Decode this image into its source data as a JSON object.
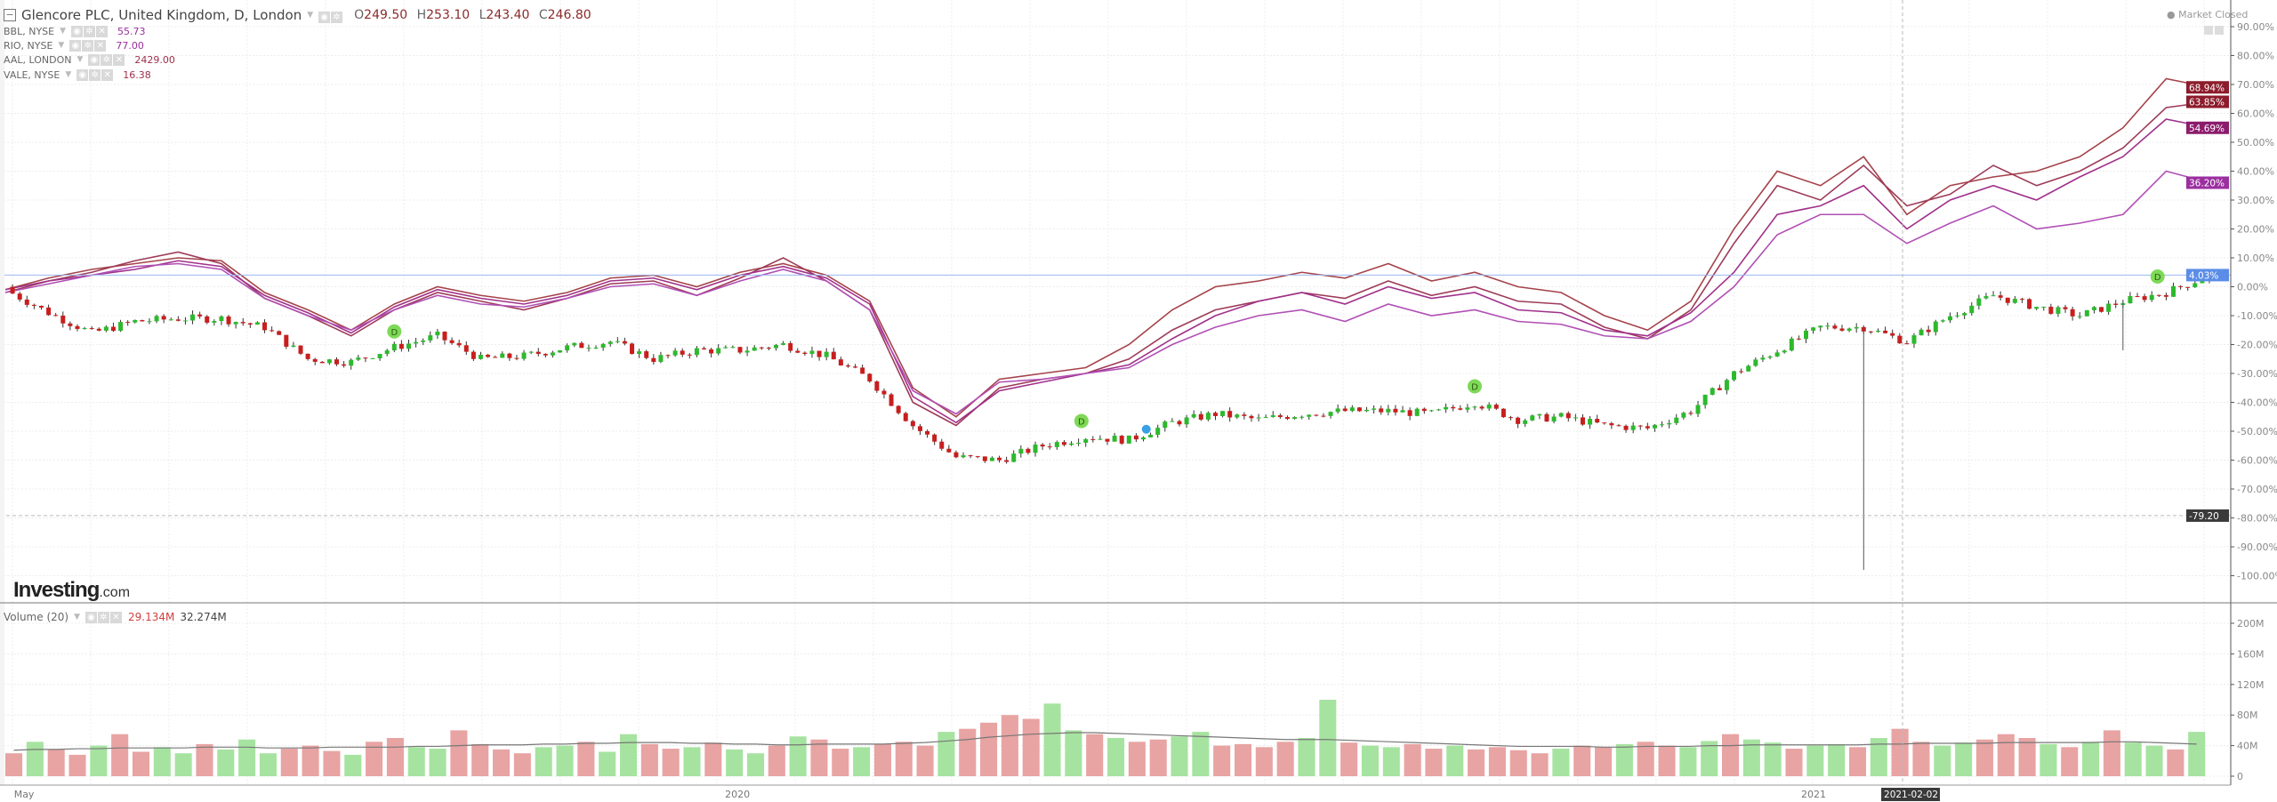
{
  "header": {
    "collapse_icon": "minus-box-icon",
    "title": "Glencore PLC, United Kingdom, D, London",
    "o_label": "O",
    "o": "249.50",
    "h_label": "H",
    "h": "253.10",
    "l_label": "L",
    "l": "243.40",
    "c_label": "C",
    "c": "246.80"
  },
  "comparisons": [
    {
      "name": "BBL, NYSE",
      "value": "55.73",
      "color": "#9b2f9b"
    },
    {
      "name": "RIO, NYSE",
      "value": "77.00",
      "color": "#9b2f9b"
    },
    {
      "name": "AAL, LONDON",
      "value": "2429.00",
      "color": "#a0304a"
    },
    {
      "name": "VALE, NYSE",
      "value": "16.38",
      "color": "#a0304a"
    }
  ],
  "status": {
    "market": "Market Closed"
  },
  "logo": {
    "main": "Investing",
    "suffix": ".com"
  },
  "volume_legend": {
    "name": "Volume (20)",
    "value": "29.134M",
    "ma": "32.274M"
  },
  "chart_data": {
    "type": "line",
    "title": "Glencore PLC, United Kingdom, D, London",
    "ylabel": "% change",
    "ylim": [
      -100,
      90
    ],
    "yticks": [
      "90.00%",
      "80.00%",
      "70.00%",
      "60.00%",
      "50.00%",
      "40.00%",
      "30.00%",
      "20.00%",
      "10.00%",
      "0.00%",
      "-10.00%",
      "-20.00%",
      "-30.00%",
      "-40.00%",
      "-50.00%",
      "-60.00%",
      "-70.00%",
      "-80.00%",
      "-90.00%",
      "-100.00%"
    ],
    "ytick_values": [
      90,
      80,
      70,
      60,
      50,
      40,
      30,
      20,
      10,
      0,
      -10,
      -20,
      -30,
      -40,
      -50,
      -60,
      -70,
      -80,
      -90,
      -100
    ],
    "xticks": [
      {
        "i": 0.2,
        "label": "May"
      },
      {
        "i": 16.9,
        "label": "2020"
      },
      {
        "i": 41.8,
        "label": "2021"
      }
    ],
    "crosshair": {
      "i": 43.9,
      "date_label": "2021-02-02",
      "value": -79.2,
      "value_label": "-79.20"
    },
    "grid": true,
    "main_series": {
      "name": "Glencore PLC",
      "style": "candles",
      "last_label": "4.03%",
      "last_value": 4.03,
      "color": "#5b8de8",
      "closes": [
        -1,
        -9,
        -16,
        -12,
        -11,
        -11,
        -14,
        -25,
        -26,
        -21,
        -17,
        -25,
        -24,
        -21,
        -19,
        -25,
        -22,
        -22,
        -20,
        -24,
        -32,
        -48,
        -59,
        -60,
        -55,
        -52,
        -53,
        -47,
        -44,
        -46,
        -44,
        -43,
        -43,
        -44,
        -40,
        -46,
        -45,
        -48,
        -49,
        -43,
        -30,
        -22,
        -14,
        -14,
        -19,
        -10,
        -3,
        -7,
        -10,
        -5,
        -2,
        4
      ],
      "low_spikes": [
        {
          "i": 43,
          "low": -98
        },
        {
          "i": 49,
          "low": -22
        }
      ],
      "up_color": "#2db92d",
      "down_color": "#c81e1e"
    },
    "series": [
      {
        "name": "AAL, LONDON",
        "last_label": "68.94%",
        "color": "#a5434a",
        "badge": "#8c1c2c",
        "values": [
          -1,
          3,
          6,
          8,
          10,
          9,
          -2,
          -8,
          -15,
          -6,
          0,
          -3,
          -5,
          -2,
          3,
          4,
          0,
          5,
          8,
          4,
          -5,
          -35,
          -45,
          -32,
          -30,
          -28,
          -20,
          -8,
          0,
          2,
          5,
          3,
          8,
          2,
          5,
          0,
          -2,
          -10,
          -15,
          -5,
          20,
          40,
          35,
          45,
          25,
          35,
          38,
          40,
          45,
          55,
          72,
          69
        ]
      },
      {
        "name": "VALE, NYSE",
        "last_label": "63.85%",
        "color": "#9e3b58",
        "badge": "#8c1c2c",
        "values": [
          -2,
          2,
          5,
          9,
          12,
          8,
          -4,
          -10,
          -17,
          -8,
          -2,
          -5,
          -8,
          -4,
          1,
          2,
          -3,
          3,
          10,
          2,
          -8,
          -40,
          -48,
          -35,
          -32,
          -30,
          -25,
          -15,
          -8,
          -5,
          -2,
          -4,
          2,
          -3,
          0,
          -5,
          -6,
          -14,
          -18,
          -8,
          15,
          35,
          30,
          42,
          28,
          32,
          42,
          35,
          40,
          48,
          62,
          64
        ]
      },
      {
        "name": "BBL, NYSE",
        "last_label": "54.69%",
        "color": "#a0308a",
        "badge": "#8c1c6c",
        "values": [
          -1,
          2,
          4,
          6,
          9,
          7,
          -3,
          -9,
          -16,
          -7,
          -1,
          -4,
          -6,
          -3,
          2,
          3,
          -1,
          4,
          7,
          3,
          -6,
          -38,
          -47,
          -36,
          -33,
          -30,
          -27,
          -18,
          -10,
          -5,
          -2,
          -6,
          0,
          -4,
          -2,
          -8,
          -9,
          -15,
          -17,
          -9,
          5,
          25,
          28,
          35,
          20,
          30,
          35,
          30,
          38,
          45,
          58,
          55
        ]
      },
      {
        "name": "RIO, NYSE",
        "last_label": "36.20%",
        "color": "#b04fb5",
        "badge": "#9b2fa0",
        "values": [
          -2,
          1,
          4,
          7,
          8,
          6,
          -4,
          -10,
          -15,
          -8,
          -3,
          -6,
          -7,
          -4,
          0,
          1,
          -3,
          2,
          6,
          2,
          -8,
          -36,
          -44,
          -33,
          -32,
          -30,
          -28,
          -20,
          -14,
          -10,
          -8,
          -12,
          -6,
          -10,
          -8,
          -12,
          -13,
          -17,
          -18,
          -12,
          0,
          18,
          25,
          25,
          15,
          22,
          28,
          20,
          22,
          25,
          40,
          36
        ]
      }
    ],
    "markers": [
      {
        "i": 9,
        "label": "D",
        "color": "#7ed957"
      },
      {
        "i": 24.9,
        "label": "D",
        "color": "#7ed957"
      },
      {
        "i": 26.4,
        "label": "",
        "color": "#3aa0e6"
      },
      {
        "i": 34,
        "label": "D",
        "color": "#7ed957"
      },
      {
        "i": 49.8,
        "label": "D",
        "color": "#7ed957"
      }
    ],
    "volume": {
      "unit": "M",
      "ylim": [
        0,
        215
      ],
      "yticks": [
        "200M",
        "160M",
        "120M",
        "80M",
        "40M",
        "0"
      ],
      "ytick_values": [
        200,
        160,
        120,
        80,
        40,
        0
      ],
      "up_color": "#a6e3a0",
      "down_color": "#e8a3a3",
      "ma_color": "#777777",
      "values": [
        30,
        45,
        35,
        28,
        40,
        55,
        32,
        38,
        30,
        42,
        35,
        48,
        30,
        36,
        40,
        33,
        28,
        45,
        50,
        38,
        36,
        60,
        42,
        35,
        30,
        38,
        40,
        45,
        32,
        55,
        42,
        36,
        38,
        44,
        35,
        30,
        40,
        52,
        48,
        36,
        38,
        42,
        45,
        40,
        58,
        62,
        70,
        80,
        75,
        95,
        60,
        55,
        50,
        45,
        48,
        52,
        58,
        40,
        42,
        38,
        45,
        50,
        100,
        44,
        40,
        38,
        42,
        36,
        40,
        35,
        38,
        34,
        30,
        36,
        40,
        38,
        42,
        45,
        40,
        38,
        46,
        55,
        48,
        44,
        36,
        40,
        42,
        38,
        50,
        62,
        45,
        40,
        44,
        48,
        55,
        50,
        42,
        38,
        45,
        60,
        44,
        40,
        35,
        58
      ],
      "ma": [
        34,
        35,
        35,
        36,
        36,
        37,
        37,
        37,
        37,
        38,
        38,
        38,
        37,
        37,
        37,
        38,
        38,
        38,
        38,
        39,
        39,
        40,
        41,
        41,
        41,
        42,
        42,
        43,
        43,
        44,
        44,
        44,
        43,
        43,
        42,
        42,
        41,
        41,
        42,
        42,
        42,
        42,
        43,
        44,
        46,
        48,
        51,
        53,
        55,
        56,
        57,
        57,
        56,
        55,
        54,
        53,
        52,
        51,
        50,
        49,
        48,
        48,
        48,
        47,
        46,
        45,
        44,
        43,
        42,
        41,
        40,
        39,
        39,
        39,
        39,
        38,
        38,
        39,
        39,
        39,
        40,
        40,
        41,
        41,
        41,
        41,
        41,
        41,
        42,
        42,
        43,
        43,
        43,
        43,
        44,
        44,
        44,
        44,
        44,
        45,
        45,
        44,
        43,
        42
      ]
    }
  }
}
